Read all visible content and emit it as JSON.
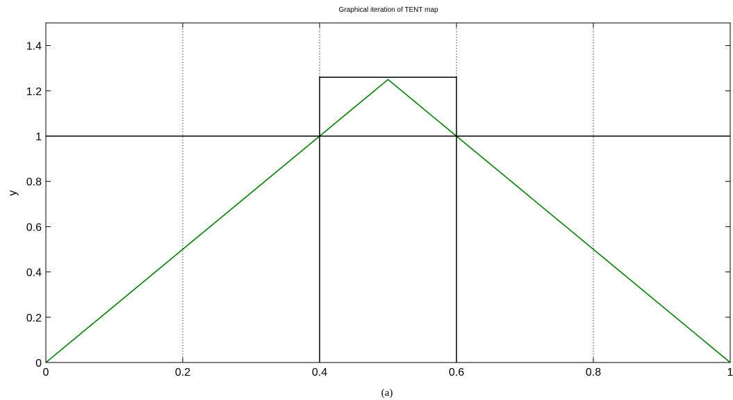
{
  "caption": "(a)",
  "chart_data": {
    "type": "line",
    "title": "Graphical iteration of TENT map",
    "xlabel": "",
    "ylabel": "y",
    "xlim": [
      0,
      1
    ],
    "ylim": [
      0,
      1.5
    ],
    "x_ticks": [
      0,
      0.2,
      0.4,
      0.6,
      0.8,
      1
    ],
    "x_tick_labels": [
      "0",
      "0.2",
      "0.4",
      "0.6",
      "0.8",
      "1"
    ],
    "y_ticks": [
      0,
      0.2,
      0.4,
      0.6,
      0.8,
      1,
      1.2,
      1.4
    ],
    "y_tick_labels": [
      "0",
      "0.2",
      "0.4",
      "0.6",
      "0.8",
      "1",
      "1.2",
      "1.4"
    ],
    "grid": "vertical dotted",
    "series": [
      {
        "kind": "tent-map",
        "color": "#008000",
        "x": [
          0,
          0.5,
          1
        ],
        "y": [
          0,
          1.25,
          0
        ]
      },
      {
        "kind": "horizontal-line",
        "color": "#000000",
        "x": [
          0,
          1
        ],
        "y": [
          1,
          1
        ]
      },
      {
        "kind": "cobweb",
        "color": "#000000",
        "x": [
          0.4,
          0.4,
          0.6,
          0.6
        ],
        "y": [
          1,
          1.26,
          1.26,
          1
        ]
      },
      {
        "kind": "cobweb-return",
        "color": "#000000",
        "x": [
          0.6,
          0.6
        ],
        "y": [
          1,
          0
        ]
      },
      {
        "kind": "cobweb-return",
        "color": "#000000",
        "x": [
          0.4,
          0.4
        ],
        "y": [
          1,
          0
        ]
      }
    ]
  }
}
